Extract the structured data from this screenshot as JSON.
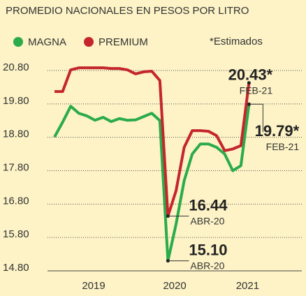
{
  "chart_data": {
    "type": "line",
    "title": "PROMEDIO NACIONALES EN PESOS POR LITRO",
    "note": "*Estimados",
    "categories": [
      null,
      null,
      null,
      null,
      null,
      "2019",
      null,
      null,
      null,
      null,
      null,
      null,
      null,
      null,
      null,
      "2020",
      null,
      null,
      null,
      null,
      null,
      null,
      null,
      null,
      "2021"
    ],
    "series": [
      {
        "name": "MAGNA",
        "color": "#2bab4b",
        "values": [
          18.81,
          19.25,
          19.73,
          19.52,
          19.44,
          19.31,
          19.4,
          19.27,
          19.36,
          19.31,
          19.32,
          19.42,
          19.52,
          19.3,
          15.1,
          16.2,
          17.5,
          18.3,
          18.6,
          18.6,
          18.5,
          18.3,
          17.8,
          17.95,
          19.79
        ],
        "value_labels": [
          null,
          null,
          null,
          null,
          null,
          null,
          null,
          null,
          null,
          null,
          null,
          null,
          null,
          null,
          "15.10",
          null,
          null,
          null,
          null,
          null,
          null,
          null,
          null,
          null,
          "19.79*"
        ],
        "date_labels": [
          null,
          null,
          null,
          null,
          null,
          null,
          null,
          null,
          null,
          null,
          null,
          null,
          null,
          null,
          "ABR-20",
          null,
          null,
          null,
          null,
          null,
          null,
          null,
          null,
          null,
          "FEB-21"
        ]
      },
      {
        "name": "PREMIUM",
        "color": "#c4262e",
        "values": [
          20.17,
          20.17,
          20.82,
          20.88,
          20.88,
          20.88,
          20.88,
          20.86,
          20.86,
          20.82,
          20.7,
          20.76,
          20.78,
          20.5,
          16.44,
          17.2,
          18.5,
          19.0,
          19.0,
          18.98,
          18.85,
          18.4,
          18.45,
          18.55,
          20.43
        ],
        "value_labels": [
          null,
          null,
          null,
          null,
          null,
          null,
          null,
          null,
          null,
          null,
          null,
          null,
          null,
          null,
          "16.44",
          null,
          null,
          null,
          null,
          null,
          null,
          null,
          null,
          null,
          "20.43*"
        ],
        "date_labels": [
          null,
          null,
          null,
          null,
          null,
          null,
          null,
          null,
          null,
          null,
          null,
          null,
          null,
          null,
          "ABR-20",
          null,
          null,
          null,
          null,
          null,
          null,
          null,
          null,
          null,
          "FEB-21"
        ]
      }
    ],
    "ylim": [
      14.8,
      20.8
    ],
    "yticks": [
      {
        "value": 14.8,
        "label": "14.80"
      },
      {
        "value": 15.8,
        "label": "15.80"
      },
      {
        "value": 16.8,
        "label": "16.80"
      },
      {
        "value": 17.8,
        "label": "17.80"
      },
      {
        "value": 18.8,
        "label": "18.80"
      },
      {
        "value": 19.8,
        "label": "19.80"
      },
      {
        "value": 20.8,
        "label": "20.80"
      }
    ],
    "grid": true
  }
}
